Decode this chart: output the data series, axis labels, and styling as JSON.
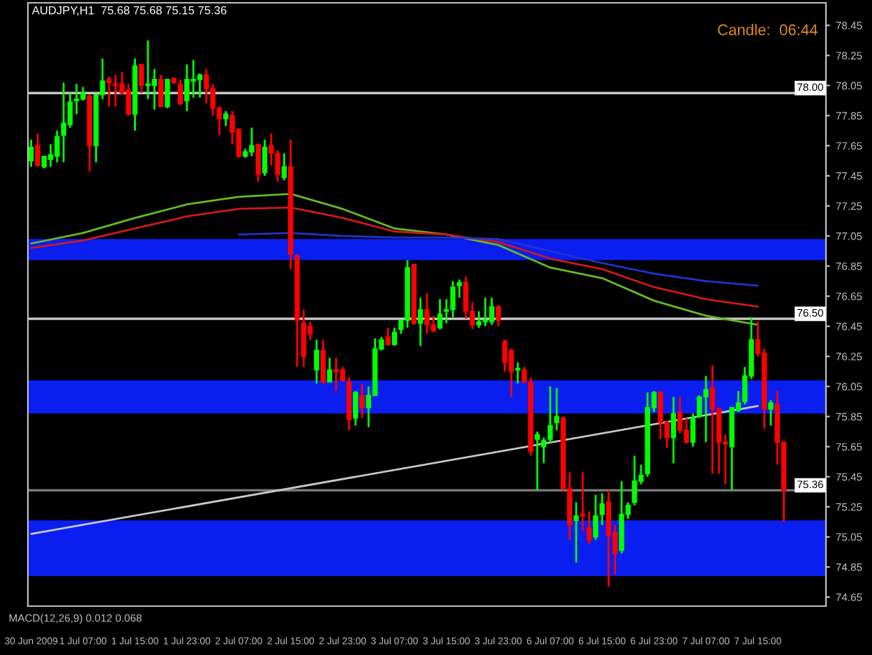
{
  "chart_data": {
    "type": "candlestick",
    "title": "AUDJPY,H1  75.68 75.68 75.15 75.36",
    "categories": [
      "30 Jun 2009",
      null,
      null,
      null,
      null,
      null,
      null,
      null,
      "1 Jul 07:00",
      null,
      null,
      null,
      null,
      null,
      null,
      null,
      "1 Jul 15:00",
      null,
      null,
      null,
      null,
      null,
      null,
      null,
      "1 Jul 23:00",
      null,
      null,
      null,
      null,
      null,
      null,
      null,
      "2 Jul 07:00",
      null,
      null,
      null,
      null,
      null,
      null,
      null,
      "2 Jul 15:00",
      null,
      null,
      null,
      null,
      null,
      null,
      null,
      "2 Jul 23:00",
      null,
      null,
      null,
      null,
      null,
      null,
      null,
      "3 Jul 07:00",
      null,
      null,
      null,
      null,
      null,
      null,
      null,
      "3 Jul 15:00",
      null,
      null,
      null,
      null,
      null,
      null,
      null,
      "3 Jul 23:00",
      null,
      null,
      null,
      null,
      null,
      null,
      null,
      "6 Jul 07:00",
      null,
      null,
      null,
      null,
      null,
      null,
      null,
      "6 Jul 15:00",
      null,
      null,
      null,
      null,
      null,
      null,
      null,
      "6 Jul 23:00",
      null,
      null,
      null,
      null,
      null,
      null,
      null,
      "7 Jul 07:00",
      null,
      null,
      null,
      null,
      null,
      null,
      null,
      "7 Jul 15:00",
      null,
      null,
      null,
      null
    ],
    "ohlc": [
      [
        77.55,
        77.69,
        77.51,
        77.64
      ],
      [
        77.65,
        77.73,
        77.51,
        77.52
      ],
      [
        77.51,
        77.58,
        77.5,
        77.58
      ],
      [
        77.56,
        77.66,
        77.51,
        77.59
      ],
      [
        77.58,
        77.75,
        77.54,
        77.71
      ],
      [
        77.72,
        78.07,
        77.54,
        77.8
      ],
      [
        77.79,
        78.0,
        77.77,
        77.94
      ],
      [
        77.95,
        78.06,
        77.86,
        77.96
      ],
      [
        77.96,
        78.04,
        77.95,
        78.0
      ],
      [
        77.98,
        77.99,
        77.48,
        77.65
      ],
      [
        77.65,
        77.99,
        77.54,
        77.99
      ],
      [
        77.99,
        78.23,
        77.96,
        78.08
      ],
      [
        78.09,
        78.11,
        77.91,
        78.07
      ],
      [
        78.06,
        78.12,
        77.91,
        78.05
      ],
      [
        78.06,
        78.14,
        77.99,
        78.0
      ],
      [
        78.02,
        78.06,
        77.85,
        77.86
      ],
      [
        77.86,
        78.23,
        77.75,
        78.18
      ],
      [
        78.19,
        78.19,
        78.0,
        78.05
      ],
      [
        78.05,
        78.35,
        77.96,
        78.06
      ],
      [
        78.05,
        78.16,
        77.89,
        78.09
      ],
      [
        78.09,
        78.12,
        77.91,
        77.91
      ],
      [
        77.91,
        78.09,
        77.9,
        78.09
      ],
      [
        78.1,
        78.1,
        78.06,
        78.07
      ],
      [
        78.06,
        78.09,
        77.92,
        77.93
      ],
      [
        77.95,
        78.19,
        77.88,
        78.09
      ],
      [
        78.08,
        78.22,
        77.97,
        78.09
      ],
      [
        78.09,
        78.13,
        77.97,
        78.12
      ],
      [
        78.12,
        78.16,
        77.93,
        78.03
      ],
      [
        78.03,
        78.06,
        77.85,
        77.9
      ],
      [
        77.9,
        77.91,
        77.72,
        77.83
      ],
      [
        77.83,
        77.88,
        77.78,
        77.86
      ],
      [
        77.85,
        77.88,
        77.66,
        77.74
      ],
      [
        77.76,
        77.76,
        77.57,
        77.58
      ],
      [
        77.58,
        77.63,
        77.57,
        77.61
      ],
      [
        77.61,
        77.77,
        77.58,
        77.65
      ],
      [
        77.66,
        77.66,
        77.41,
        77.46
      ],
      [
        77.47,
        77.69,
        77.45,
        77.64
      ],
      [
        77.65,
        77.73,
        77.52,
        77.6
      ],
      [
        77.6,
        77.62,
        77.41,
        77.46
      ],
      [
        77.44,
        77.6,
        77.42,
        77.51
      ],
      [
        77.51,
        77.69,
        76.83,
        76.93
      ],
      [
        76.92,
        76.93,
        76.18,
        76.49
      ],
      [
        76.47,
        76.56,
        76.18,
        76.25
      ],
      [
        76.45,
        76.48,
        76.36,
        76.4
      ],
      [
        76.16,
        76.36,
        76.07,
        76.29
      ],
      [
        76.29,
        76.36,
        76.07,
        76.08
      ],
      [
        76.08,
        76.24,
        76.08,
        76.16
      ],
      [
        76.16,
        76.24,
        76.02,
        76.15
      ],
      [
        76.16,
        76.18,
        76.08,
        76.09
      ],
      [
        76.08,
        76.11,
        75.76,
        75.83
      ],
      [
        75.84,
        76.02,
        75.79,
        76.01
      ],
      [
        75.99,
        76.07,
        75.84,
        75.91
      ],
      [
        75.91,
        76.05,
        75.78,
        75.99
      ],
      [
        75.99,
        76.37,
        75.99,
        76.3
      ],
      [
        76.3,
        76.38,
        76.29,
        76.36
      ],
      [
        76.38,
        76.44,
        76.32,
        76.33
      ],
      [
        76.33,
        76.44,
        76.32,
        76.41
      ],
      [
        76.43,
        76.49,
        76.4,
        76.49
      ],
      [
        76.49,
        76.89,
        76.44,
        76.84
      ],
      [
        76.86,
        76.86,
        76.46,
        76.47
      ],
      [
        76.47,
        76.64,
        76.32,
        76.56
      ],
      [
        76.56,
        76.67,
        76.4,
        76.46
      ],
      [
        76.46,
        76.52,
        76.41,
        76.42
      ],
      [
        76.44,
        76.63,
        76.43,
        76.53
      ],
      [
        76.55,
        76.63,
        76.47,
        76.56
      ],
      [
        76.56,
        76.75,
        76.51,
        76.71
      ],
      [
        76.72,
        76.76,
        76.64,
        76.74
      ],
      [
        76.74,
        76.78,
        76.5,
        76.55
      ],
      [
        76.55,
        76.61,
        76.43,
        76.46
      ],
      [
        76.46,
        76.55,
        76.44,
        76.48
      ],
      [
        76.48,
        76.64,
        76.45,
        76.49
      ],
      [
        76.48,
        76.64,
        76.46,
        76.58
      ],
      [
        76.58,
        76.59,
        76.45,
        76.49
      ],
      [
        76.35,
        76.36,
        76.15,
        76.21
      ],
      [
        76.29,
        76.3,
        75.98,
        76.15
      ],
      [
        76.16,
        76.21,
        76.07,
        76.17
      ],
      [
        76.16,
        76.18,
        76.07,
        76.08
      ],
      [
        76.08,
        76.11,
        75.59,
        75.62
      ],
      [
        75.7,
        75.75,
        75.36,
        75.73
      ],
      [
        75.65,
        75.71,
        75.54,
        75.69
      ],
      [
        75.7,
        76.05,
        75.67,
        75.79
      ],
      [
        75.81,
        76.04,
        75.76,
        75.85
      ],
      [
        75.84,
        75.85,
        75.36,
        75.37
      ],
      [
        75.37,
        75.48,
        75.03,
        75.13
      ],
      [
        75.16,
        75.28,
        74.88,
        75.19
      ],
      [
        75.2,
        75.48,
        75.09,
        75.19
      ],
      [
        75.11,
        75.22,
        75.0,
        75.03
      ],
      [
        75.05,
        75.33,
        75.03,
        75.19
      ],
      [
        75.2,
        75.34,
        75.13,
        75.27
      ],
      [
        75.28,
        75.36,
        74.72,
        75.06
      ],
      [
        75.08,
        75.13,
        74.8,
        74.94
      ],
      [
        74.96,
        75.42,
        74.94,
        75.2
      ],
      [
        75.2,
        75.28,
        75.17,
        75.26
      ],
      [
        75.28,
        75.59,
        75.26,
        75.42
      ],
      [
        75.42,
        75.53,
        75.4,
        75.46
      ],
      [
        75.47,
        76.01,
        75.45,
        75.91
      ],
      [
        75.91,
        76.02,
        75.88,
        76.01
      ],
      [
        76.01,
        76.02,
        75.7,
        75.81
      ],
      [
        75.81,
        75.82,
        75.64,
        75.71
      ],
      [
        75.71,
        75.98,
        75.54,
        75.87
      ],
      [
        75.88,
        75.98,
        75.74,
        75.76
      ],
      [
        75.76,
        75.84,
        75.67,
        75.68
      ],
      [
        75.68,
        75.87,
        75.65,
        75.84
      ],
      [
        75.85,
        75.99,
        75.84,
        75.98
      ],
      [
        75.98,
        76.12,
        75.68,
        76.03
      ],
      [
        76.04,
        76.19,
        75.47,
        75.9
      ],
      [
        75.9,
        75.91,
        75.47,
        75.68
      ],
      [
        75.68,
        75.73,
        75.4,
        75.67
      ],
      [
        75.65,
        75.91,
        75.36,
        75.91
      ],
      [
        75.89,
        76.02,
        75.88,
        75.94
      ],
      [
        75.95,
        76.18,
        75.93,
        76.12
      ],
      [
        76.12,
        76.51,
        76.1,
        76.36
      ],
      [
        76.36,
        76.48,
        76.25,
        76.27
      ],
      [
        76.27,
        76.3,
        75.77,
        75.9
      ],
      [
        75.9,
        75.96,
        75.79,
        75.94
      ],
      [
        75.93,
        76.02,
        75.53,
        75.68
      ],
      [
        75.68,
        75.68,
        75.15,
        75.36
      ]
    ],
    "colors": [
      "#00ff00",
      "#ff0000",
      "#00ff00",
      "#00ff00",
      "#00ff00",
      "#00ff00",
      "#00ff00",
      "#00ff00",
      "#00ff00",
      "#ff0000",
      "#00ff00",
      "#00ff00",
      "#ff0000",
      "#ff0000",
      "#ff0000",
      "#ff0000",
      "#00ff00",
      "#ff0000",
      "#00ff00",
      "#00ff00",
      "#ff0000",
      "#00ff00",
      "#ff0000",
      "#ff0000",
      "#00ff00",
      "#00ff00",
      "#00ff00",
      "#ff0000",
      "#ff0000",
      "#ff0000",
      "#00ff00",
      "#ff0000",
      "#ff0000",
      "#00ff00",
      "#00ff00",
      "#ff0000",
      "#00ff00",
      "#ff0000",
      "#ff0000",
      "#00ff00",
      "#ff0000",
      "#ff0000",
      "#ff0000",
      "#ff0000",
      "#00ff00",
      "#ff0000",
      "#00ff00",
      "#ff0000",
      "#ff0000",
      "#ff0000",
      "#00ff00",
      "#ff0000",
      "#00ff00",
      "#00ff00",
      "#00ff00",
      "#ff0000",
      "#00ff00",
      "#00ff00",
      "#00ff00",
      "#ff0000",
      "#00ff00",
      "#ff0000",
      "#ff0000",
      "#00ff00",
      "#00ff00",
      "#00ff00",
      "#00ff00",
      "#ff0000",
      "#ff0000",
      "#00ff00",
      "#00ff00",
      "#00ff00",
      "#ff0000",
      "#ff0000",
      "#ff0000",
      "#00ff00",
      "#ff0000",
      "#ff0000",
      "#00ff00",
      "#00ff00",
      "#00ff00",
      "#00ff00",
      "#ff0000",
      "#ff0000",
      "#00ff00",
      "#ff0000",
      "#ff0000",
      "#00ff00",
      "#00ff00",
      "#ff0000",
      "#ff0000",
      "#00ff00",
      "#00ff00",
      "#00ff00",
      "#00ff00",
      "#00ff00",
      "#00ff00",
      "#ff0000",
      "#ff0000",
      "#00ff00",
      "#ff0000",
      "#ff0000",
      "#00ff00",
      "#00ff00",
      "#00ff00",
      "#ff0000",
      "#ff0000",
      "#ff0000",
      "#00ff00",
      "#00ff00",
      "#00ff00",
      "#00ff00",
      "#ff0000",
      "#ff0000",
      "#00ff00",
      "#ff0000",
      "#ff0000"
    ],
    "series": [
      {
        "type": "line",
        "color": "#66bb22",
        "x": [
          "30 Jun 2009",
          "1 Jul 07:00",
          "1 Jul 15:00",
          "1 Jul 23:00",
          "2 Jul 07:00",
          "2 Jul 15:00",
          "2 Jul 23:00",
          "3 Jul 07:00",
          "3 Jul 15:00",
          "3 Jul 23:00",
          "6 Jul 07:00",
          "6 Jul 15:00",
          "6 Jul 23:00",
          "7 Jul 07:00",
          "7 Jul 15:00"
        ],
        "values": [
          77.0,
          77.07,
          77.17,
          77.26,
          77.31,
          77.33,
          77.23,
          77.1,
          77.06,
          76.99,
          76.84,
          76.77,
          76.62,
          76.52,
          76.46
        ]
      },
      {
        "type": "line",
        "color": "#cc1a1a",
        "x": [
          "30 Jun 2009",
          "1 Jul 07:00",
          "1 Jul 15:00",
          "1 Jul 23:00",
          "2 Jul 07:00",
          "2 Jul 15:00",
          "2 Jul 23:00",
          "3 Jul 07:00",
          "3 Jul 15:00",
          "3 Jul 23:00",
          "6 Jul 07:00",
          "6 Jul 15:00",
          "6 Jul 23:00",
          "7 Jul 07:00",
          "7 Jul 15:00"
        ],
        "values": [
          76.97,
          77.02,
          77.1,
          77.18,
          77.23,
          77.24,
          77.17,
          77.08,
          77.06,
          77.01,
          76.9,
          76.83,
          76.71,
          76.63,
          76.58
        ]
      },
      {
        "type": "line",
        "color": "#2233cc",
        "x": [
          "2 Jul 07:00",
          "2 Jul 15:00",
          "2 Jul 23:00",
          "3 Jul 07:00",
          "3 Jul 15:00",
          "3 Jul 23:00",
          "6 Jul 07:00",
          "6 Jul 15:00",
          "6 Jul 23:00",
          "7 Jul 07:00",
          "7 Jul 15:00"
        ],
        "values": [
          77.06,
          77.07,
          77.05,
          77.04,
          77.04,
          77.03,
          76.95,
          76.87,
          76.8,
          76.75,
          76.72
        ]
      },
      {
        "type": "line",
        "color": "#c8c8c8",
        "x": [
          "30 Jun 2009",
          "7 Jul 15:00"
        ],
        "values": [
          75.07,
          75.92
        ]
      }
    ],
    "ylim": [
      74.59,
      78.6
    ],
    "yticks": [
      78.45,
      78.25,
      78.05,
      77.85,
      77.65,
      77.45,
      77.25,
      77.05,
      76.85,
      76.65,
      76.45,
      76.25,
      76.05,
      75.85,
      75.65,
      75.45,
      75.25,
      75.05,
      74.85,
      74.65
    ],
    "ref_lines": [
      {
        "axis": "y",
        "value": 78.0,
        "label": "78.00",
        "color": "#c8c8c8"
      },
      {
        "axis": "y",
        "value": 76.5,
        "label": "76.50",
        "color": "#c8c8c8"
      },
      {
        "axis": "y",
        "value": 75.36,
        "label": "75.36",
        "color": "#808080"
      }
    ],
    "bands": [
      {
        "axis": "y",
        "from": 76.89,
        "to": 77.03,
        "color": "#0a1ef0"
      },
      {
        "axis": "y",
        "from": 75.87,
        "to": 76.09,
        "color": "#0a1ef0"
      },
      {
        "axis": "y",
        "from": 74.79,
        "to": 75.16,
        "color": "#0a1ef0"
      }
    ],
    "annotations": [
      "Candle:  06:44",
      "MACD(12,26,9) 0.012 0.068"
    ],
    "grid": false
  }
}
